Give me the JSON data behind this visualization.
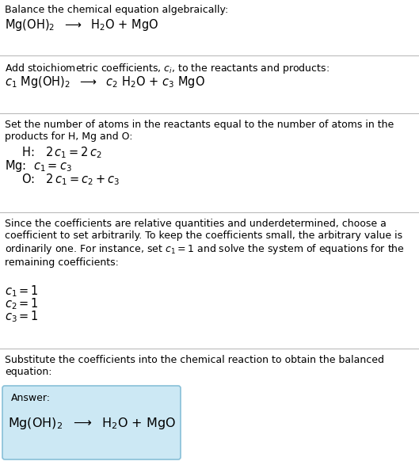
{
  "bg_color": "#ffffff",
  "text_color": "#000000",
  "section1_title": "Balance the chemical equation algebraically:",
  "section1_eq": "Mg(OH)$_2$  $\\longrightarrow$  H$_2$O + MgO",
  "section2_title": "Add stoichiometric coefficients, $c_i$, to the reactants and products:",
  "section2_eq": "$c_1$ Mg(OH)$_2$  $\\longrightarrow$  $c_2$ H$_2$O + $c_3$ MgO",
  "section3_title": "Set the number of atoms in the reactants equal to the number of atoms in the\nproducts for H, Mg and O:",
  "section3_H": "  H:   $2\\,c_1 = 2\\,c_2$",
  "section3_Mg": "Mg:  $c_1 = c_3$",
  "section3_O": "  O:   $2\\,c_1 = c_2 + c_3$",
  "section4_title": "Since the coefficients are relative quantities and underdetermined, choose a\ncoefficient to set arbitrarily. To keep the coefficients small, the arbitrary value is\nordinarily one. For instance, set $c_1 = 1$ and solve the system of equations for the\nremaining coefficients:",
  "section4_c1": "$c_1 = 1$",
  "section4_c2": "$c_2 = 1$",
  "section4_c3": "$c_3 = 1$",
  "section5_title": "Substitute the coefficients into the chemical reaction to obtain the balanced\nequation:",
  "answer_label": "Answer:",
  "answer_eq": "Mg(OH)$_2$  $\\longrightarrow$  H$_2$O + MgO",
  "answer_box_color": "#cce8f4",
  "answer_box_edge": "#88c0d8",
  "divider_color": "#bbbbbb",
  "fs_body": 9.0,
  "fs_eq": 10.5
}
